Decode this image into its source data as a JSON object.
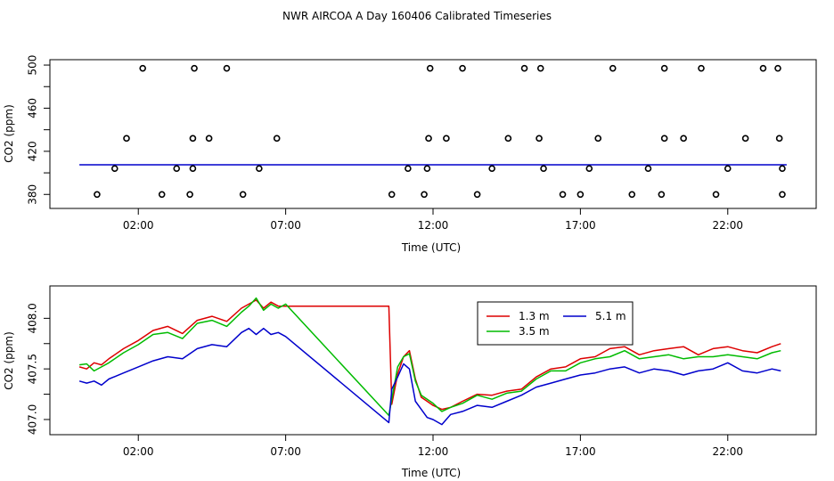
{
  "title": "NWR AIRCOA A  Day 160406  Calibrated Timeseries",
  "colors": {
    "red": "#dd0000",
    "green": "#00bb00",
    "blue": "#0000cc",
    "cyan": "#00aaaa",
    "magenta": "#bb00bb",
    "black": "#000000"
  },
  "chart_data": [
    {
      "type": "scatter",
      "title": "",
      "xlabel": "Time (UTC)",
      "ylabel": "CO2 (ppm)",
      "xlim": [
        -1.0,
        25.0
      ],
      "ylim": [
        367,
        505
      ],
      "xticks": [
        2,
        7,
        12,
        17,
        22
      ],
      "xtick_labels": [
        "02:00",
        "07:00",
        "12:00",
        "17:00",
        "22:00"
      ],
      "yticks": [
        380,
        420,
        460,
        500
      ],
      "ytick_labels": [
        "380",
        "420",
        "460",
        "500"
      ],
      "grid": false,
      "points": {
        "x": [
          0.6,
          1.2,
          1.6,
          2.15,
          2.8,
          3.3,
          3.75,
          3.85,
          3.85,
          3.9,
          4.4,
          5.0,
          5.55,
          6.1,
          6.7,
          10.6,
          11.15,
          11.7,
          11.8,
          11.85,
          11.9,
          12.45,
          13.0,
          13.5,
          14.0,
          14.55,
          15.1,
          15.6,
          15.65,
          15.75,
          16.4,
          17.0,
          17.3,
          17.6,
          18.1,
          18.75,
          19.3,
          19.75,
          19.85,
          19.85,
          20.5,
          21.1,
          21.6,
          22.0,
          22.6,
          23.2,
          23.7,
          23.75,
          23.85,
          23.85
        ],
        "y": [
          380,
          404,
          432,
          497,
          380,
          404,
          380,
          404,
          432,
          497,
          432,
          497,
          380,
          404,
          432,
          380,
          404,
          380,
          404,
          432,
          497,
          432,
          497,
          380,
          404,
          432,
          497,
          432,
          497,
          404,
          380,
          380,
          404,
          432,
          497,
          380,
          404,
          380,
          432,
          497,
          432,
          497,
          380,
          404,
          432,
          497,
          497,
          432,
          404,
          380
        ]
      },
      "series": [
        {
          "name": "",
          "color": "blue",
          "x": [
            0.0,
            10.5,
            24.0
          ],
          "y": [
            407.5,
            407.5,
            407.5
          ]
        }
      ]
    },
    {
      "type": "line",
      "title": "",
      "xlabel": "Time (UTC)",
      "ylabel": "CO2 (ppm)",
      "xlim": [
        -1.0,
        25.0
      ],
      "ylim": [
        406.85,
        408.32
      ],
      "xticks": [
        2,
        7,
        12,
        17,
        22
      ],
      "xtick_labels": [
        "02:00",
        "07:00",
        "12:00",
        "17:00",
        "22:00"
      ],
      "yticks": [
        407.0,
        407.5,
        408.0
      ],
      "ytick_labels": [
        "407.0",
        "407.5",
        "408.0"
      ],
      "grid": false,
      "legend": "top-center",
      "series": [
        {
          "name": "1.3 m",
          "color": "red",
          "x": [
            0.0,
            0.25,
            0.5,
            0.75,
            1.0,
            1.5,
            2.0,
            2.5,
            3.0,
            3.5,
            4.0,
            4.5,
            5.0,
            5.5,
            5.75,
            6.0,
            6.25,
            6.5,
            6.75,
            7.0,
            10.5,
            10.6,
            10.8,
            11.0,
            11.2,
            11.4,
            11.6,
            11.8,
            12.0,
            12.3,
            12.6,
            13.0,
            13.5,
            14.0,
            14.5,
            15.0,
            15.5,
            16.0,
            16.5,
            17.0,
            17.5,
            18.0,
            18.5,
            19.0,
            19.5,
            20.0,
            20.5,
            21.0,
            21.5,
            22.0,
            22.5,
            23.0,
            23.5,
            23.8
          ],
          "y": [
            407.52,
            407.5,
            407.56,
            407.54,
            407.6,
            407.7,
            407.78,
            407.88,
            407.92,
            407.85,
            407.98,
            408.02,
            407.97,
            408.1,
            408.14,
            408.18,
            408.1,
            408.16,
            408.12,
            408.12,
            408.12,
            407.15,
            407.45,
            407.62,
            407.68,
            407.4,
            407.22,
            407.18,
            407.14,
            407.1,
            407.12,
            407.18,
            407.25,
            407.24,
            407.28,
            407.3,
            407.42,
            407.5,
            407.52,
            407.6,
            407.62,
            407.7,
            407.72,
            407.64,
            407.68,
            407.7,
            407.72,
            407.64,
            407.7,
            407.72,
            407.68,
            407.66,
            407.72,
            407.75
          ]
        },
        {
          "name": "3.5 m",
          "color": "green",
          "x": [
            0.0,
            0.25,
            0.5,
            0.75,
            1.0,
            1.5,
            2.0,
            2.5,
            3.0,
            3.5,
            4.0,
            4.5,
            5.0,
            5.5,
            5.75,
            6.0,
            6.25,
            6.5,
            6.75,
            7.0,
            10.5,
            10.6,
            10.8,
            11.0,
            11.2,
            11.4,
            11.6,
            11.8,
            12.0,
            12.3,
            12.6,
            13.0,
            13.5,
            14.0,
            14.5,
            15.0,
            15.5,
            16.0,
            16.5,
            17.0,
            17.5,
            18.0,
            18.5,
            19.0,
            19.5,
            20.0,
            20.5,
            21.0,
            21.5,
            22.0,
            22.5,
            23.0,
            23.5,
            23.8
          ],
          "y": [
            407.54,
            407.55,
            407.48,
            407.52,
            407.56,
            407.66,
            407.74,
            407.84,
            407.86,
            407.8,
            407.95,
            407.98,
            407.92,
            408.06,
            408.12,
            408.2,
            408.08,
            408.14,
            408.1,
            408.14,
            407.04,
            407.2,
            407.52,
            407.62,
            407.65,
            407.38,
            407.24,
            407.2,
            407.16,
            407.08,
            407.12,
            407.16,
            407.24,
            407.2,
            407.26,
            407.28,
            407.4,
            407.48,
            407.48,
            407.56,
            407.6,
            407.62,
            407.68,
            407.6,
            407.62,
            407.64,
            407.6,
            407.62,
            407.62,
            407.64,
            407.62,
            407.6,
            407.66,
            407.68
          ]
        },
        {
          "name": "5.1 m",
          "color": "blue",
          "x": [
            0.0,
            0.25,
            0.5,
            0.75,
            1.0,
            1.5,
            2.0,
            2.5,
            3.0,
            3.5,
            4.0,
            4.5,
            5.0,
            5.5,
            5.75,
            6.0,
            6.25,
            6.5,
            6.75,
            7.0,
            10.5,
            10.6,
            10.8,
            11.0,
            11.2,
            11.4,
            11.6,
            11.8,
            12.0,
            12.3,
            12.6,
            13.0,
            13.5,
            14.0,
            14.5,
            15.0,
            15.5,
            16.0,
            16.5,
            17.0,
            17.5,
            18.0,
            18.5,
            19.0,
            19.5,
            20.0,
            20.5,
            21.0,
            21.5,
            22.0,
            22.5,
            23.0,
            23.5,
            23.8
          ],
          "y": [
            407.38,
            407.36,
            407.38,
            407.34,
            407.4,
            407.46,
            407.52,
            407.58,
            407.62,
            407.6,
            407.7,
            407.74,
            407.72,
            407.86,
            407.9,
            407.84,
            407.9,
            407.84,
            407.86,
            407.82,
            406.97,
            407.3,
            407.42,
            407.55,
            407.5,
            407.18,
            407.1,
            407.02,
            407.0,
            406.95,
            407.05,
            407.08,
            407.14,
            407.12,
            407.18,
            407.24,
            407.32,
            407.36,
            407.4,
            407.44,
            407.46,
            407.5,
            407.52,
            407.46,
            407.5,
            407.48,
            407.44,
            407.48,
            407.5,
            407.56,
            407.48,
            407.46,
            407.5,
            407.48
          ]
        }
      ]
    }
  ]
}
